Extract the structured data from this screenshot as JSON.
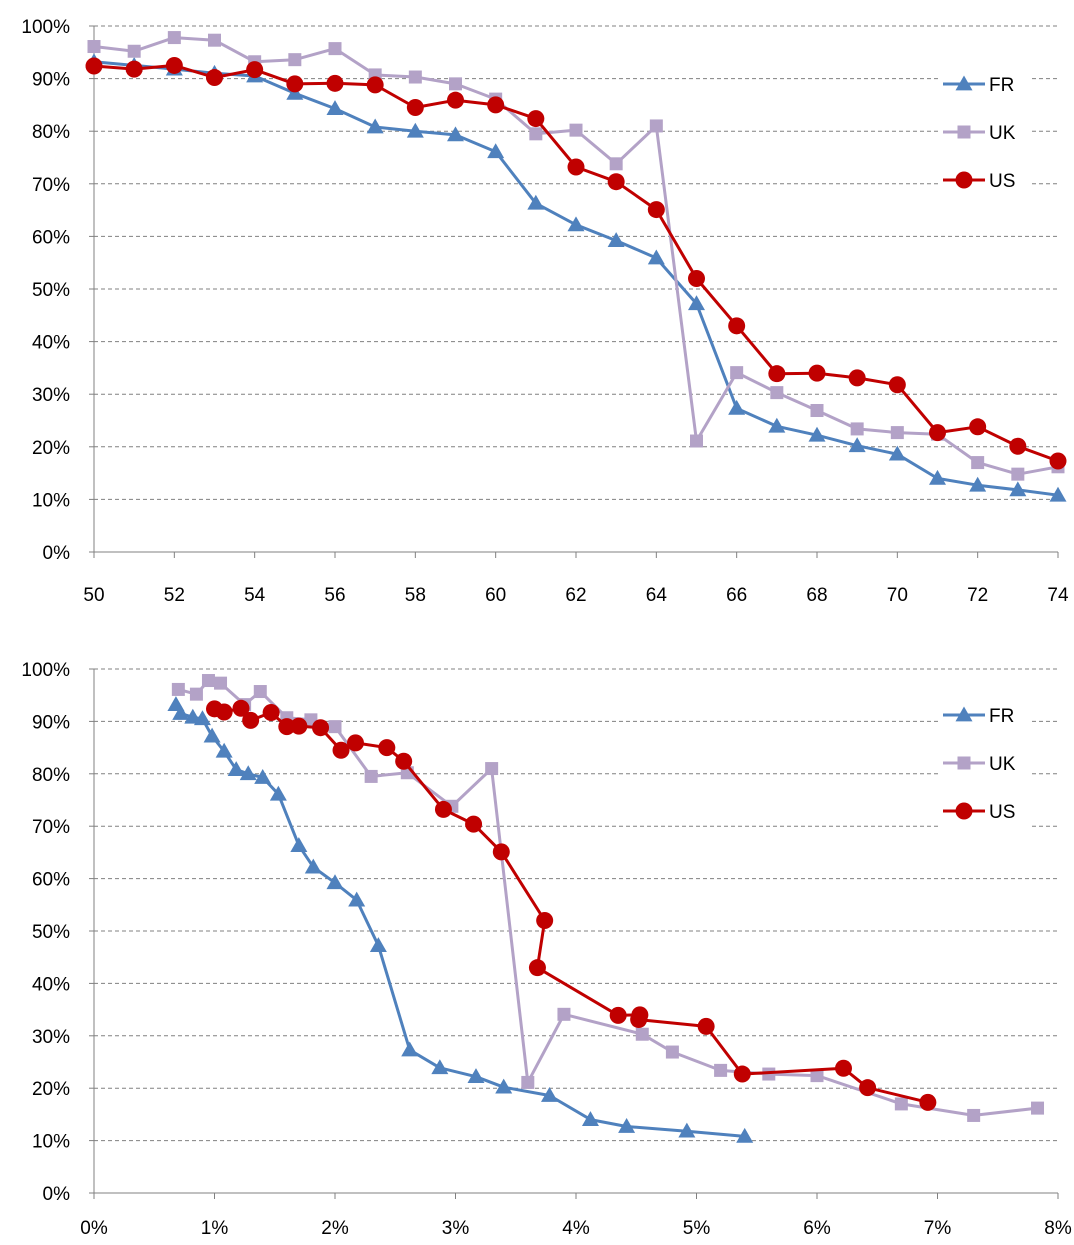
{
  "legend_labels": [
    "FR",
    "UK",
    "US"
  ],
  "colors": {
    "FR": "#4f81bd",
    "UK": "#b3a2c7",
    "US": "#c00000",
    "grid": "#808080",
    "axis": "#808080"
  },
  "chart_data": [
    {
      "type": "line",
      "title": "",
      "xlabel": "",
      "ylabel": "",
      "xlim": [
        50,
        74
      ],
      "ylim": [
        0,
        100
      ],
      "x_ticks": [
        50,
        52,
        54,
        56,
        58,
        60,
        62,
        64,
        66,
        68,
        70,
        72,
        74
      ],
      "x_tick_labels": [
        "50",
        "52",
        "54",
        "56",
        "58",
        "60",
        "62",
        "64",
        "66",
        "68",
        "70",
        "72",
        "74"
      ],
      "y_ticks": [
        0,
        10,
        20,
        30,
        40,
        50,
        60,
        70,
        80,
        90,
        100
      ],
      "y_tick_labels": [
        "0%",
        "10%",
        "20%",
        "30%",
        "40%",
        "50%",
        "60%",
        "70%",
        "80%",
        "90%",
        "100%"
      ],
      "grid": "horizontal dashed",
      "legend": "right",
      "x": [
        50,
        51,
        52,
        53,
        54,
        55,
        56,
        57,
        58,
        59,
        60,
        61,
        62,
        63,
        64,
        65,
        66,
        67,
        68,
        69,
        70,
        71,
        72,
        73,
        74
      ],
      "series": [
        {
          "name": "FR",
          "marker": "triangle",
          "values": [
            93.2,
            92.5,
            91.8,
            91.0,
            90.5,
            87.2,
            84.3,
            80.8,
            80.0,
            79.3,
            76.1,
            66.3,
            62.2,
            59.2,
            55.9,
            47.2,
            27.3,
            23.9,
            22.2,
            20.2,
            18.6,
            14.0,
            12.7,
            11.8,
            10.8
          ]
        },
        {
          "name": "UK",
          "marker": "square",
          "values": [
            96.1,
            95.2,
            97.8,
            97.3,
            93.2,
            93.6,
            95.7,
            90.7,
            90.3,
            89.0,
            86.1,
            79.5,
            80.2,
            73.8,
            81.0,
            21.1,
            34.1,
            30.3,
            26.9,
            23.4,
            22.7,
            22.4,
            17.0,
            14.8,
            16.2
          ]
        },
        {
          "name": "US",
          "marker": "circle",
          "values": [
            92.4,
            91.8,
            92.5,
            90.2,
            91.7,
            89.0,
            89.1,
            88.8,
            84.5,
            85.9,
            85.0,
            82.4,
            73.2,
            70.4,
            65.1,
            52.0,
            43.0,
            33.9,
            34.0,
            33.1,
            31.8,
            22.7,
            23.8,
            20.1,
            17.3
          ]
        }
      ]
    },
    {
      "type": "line",
      "title": "",
      "xlabel": "",
      "ylabel": "",
      "xlim": [
        0,
        8
      ],
      "ylim": [
        0,
        100
      ],
      "x_ticks": [
        0,
        1,
        2,
        3,
        4,
        5,
        6,
        7,
        8
      ],
      "x_tick_labels": [
        "0%",
        "1%",
        "2%",
        "3%",
        "4%",
        "5%",
        "6%",
        "7%",
        "8%"
      ],
      "y_ticks": [
        0,
        10,
        20,
        30,
        40,
        50,
        60,
        70,
        80,
        90,
        100
      ],
      "y_tick_labels": [
        "0%",
        "10%",
        "20%",
        "30%",
        "40%",
        "50%",
        "60%",
        "70%",
        "80%",
        "90%",
        "100%"
      ],
      "grid": "horizontal dashed",
      "legend": "right",
      "series": [
        {
          "name": "FR",
          "marker": "triangle",
          "points": [
            [
              0.68,
              93.2
            ],
            [
              0.72,
              91.5
            ],
            [
              0.82,
              90.8
            ],
            [
              0.9,
              90.5
            ],
            [
              0.98,
              87.2
            ],
            [
              1.08,
              84.3
            ],
            [
              1.18,
              80.8
            ],
            [
              1.28,
              80.0
            ],
            [
              1.4,
              79.3
            ],
            [
              1.53,
              76.1
            ],
            [
              1.7,
              66.3
            ],
            [
              1.82,
              62.2
            ],
            [
              2.0,
              59.2
            ],
            [
              2.18,
              55.9
            ],
            [
              2.36,
              47.2
            ],
            [
              2.62,
              27.3
            ],
            [
              2.87,
              23.9
            ],
            [
              3.17,
              22.2
            ],
            [
              3.4,
              20.2
            ],
            [
              3.78,
              18.6
            ],
            [
              4.12,
              14.0
            ],
            [
              4.42,
              12.7
            ],
            [
              4.92,
              11.8
            ],
            [
              5.4,
              10.8
            ]
          ]
        },
        {
          "name": "UK",
          "marker": "square",
          "points": [
            [
              0.7,
              96.1
            ],
            [
              0.85,
              95.2
            ],
            [
              0.95,
              97.8
            ],
            [
              1.05,
              97.3
            ],
            [
              1.25,
              93.2
            ],
            [
              1.38,
              95.7
            ],
            [
              1.6,
              90.7
            ],
            [
              1.8,
              90.3
            ],
            [
              2.0,
              89.0
            ],
            [
              2.3,
              79.5
            ],
            [
              2.6,
              80.2
            ],
            [
              2.97,
              73.8
            ],
            [
              3.3,
              81.0
            ],
            [
              3.6,
              21.1
            ],
            [
              3.9,
              34.1
            ],
            [
              4.55,
              30.3
            ],
            [
              4.8,
              26.9
            ],
            [
              5.2,
              23.4
            ],
            [
              5.6,
              22.7
            ],
            [
              6.0,
              22.4
            ],
            [
              6.7,
              17.0
            ],
            [
              7.3,
              14.8
            ],
            [
              7.83,
              16.2
            ]
          ]
        },
        {
          "name": "US",
          "marker": "circle",
          "points": [
            [
              1.0,
              92.4
            ],
            [
              1.08,
              91.8
            ],
            [
              1.22,
              92.5
            ],
            [
              1.3,
              90.2
            ],
            [
              1.47,
              91.7
            ],
            [
              1.6,
              89.0
            ],
            [
              1.7,
              89.1
            ],
            [
              1.88,
              88.8
            ],
            [
              2.05,
              84.5
            ],
            [
              2.17,
              85.9
            ],
            [
              2.43,
              85.0
            ],
            [
              2.57,
              82.4
            ],
            [
              2.9,
              73.2
            ],
            [
              3.15,
              70.4
            ],
            [
              3.38,
              65.1
            ],
            [
              3.74,
              52.0
            ],
            [
              3.68,
              43.0
            ],
            [
              4.35,
              33.9
            ],
            [
              4.53,
              34.0
            ],
            [
              4.52,
              33.1
            ],
            [
              5.08,
              31.8
            ],
            [
              5.38,
              22.7
            ],
            [
              6.22,
              23.8
            ],
            [
              6.42,
              20.1
            ],
            [
              6.92,
              17.3
            ]
          ]
        }
      ]
    }
  ]
}
